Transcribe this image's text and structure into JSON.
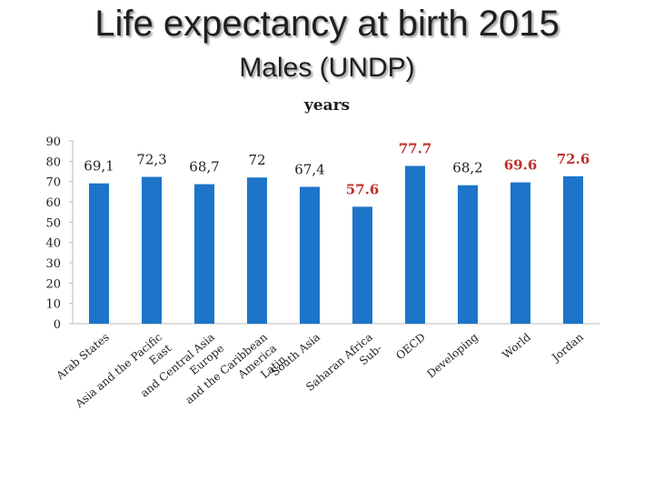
{
  "header": {
    "title": "Life expectancy at birth 2015",
    "subtitle": "Males (UNDP)",
    "unit": "years"
  },
  "chart_data": {
    "type": "bar",
    "title": "Life expectancy at birth 2015",
    "subtitle": "Males (UNDP)",
    "ylabel": "years",
    "xlabel": "",
    "ylim": [
      0,
      90
    ],
    "yticks": [
      "0",
      "10",
      "20",
      "30",
      "40",
      "50",
      "60",
      "70",
      "80",
      "90"
    ],
    "bar_color": "#1c75c8",
    "highlight_color": "#c0302b",
    "categories": [
      "Arab States",
      "East Asia and the Pacific",
      "Europe and Central Asia",
      "Latin America and the Caribbean",
      "South Asia",
      "Sub-Saharan Africa",
      "OECD",
      "Developing",
      "World",
      "Jordan"
    ],
    "category_lines": [
      [
        "Arab States"
      ],
      [
        "Asia and the Pacific",
        "East"
      ],
      [
        "and Central Asia",
        "Europe"
      ],
      [
        "and the Caribbean",
        "America",
        "Latin"
      ],
      [
        "South Asia"
      ],
      [
        "Saharan Africa",
        "Sub-"
      ],
      [
        "OECD"
      ],
      [
        "Developing"
      ],
      [
        "World"
      ],
      [
        "Jordan"
      ]
    ],
    "values": [
      69.1,
      72.3,
      68.7,
      72,
      67.4,
      57.6,
      77.7,
      68.2,
      69.6,
      72.6
    ],
    "value_labels": [
      "69,1",
      "72,3",
      "68,7",
      "72",
      "67,4",
      "57.6",
      "77.7",
      "68,2",
      "69.6",
      "72.6"
    ],
    "highlighted": [
      false,
      false,
      false,
      false,
      false,
      true,
      true,
      false,
      true,
      true
    ]
  }
}
